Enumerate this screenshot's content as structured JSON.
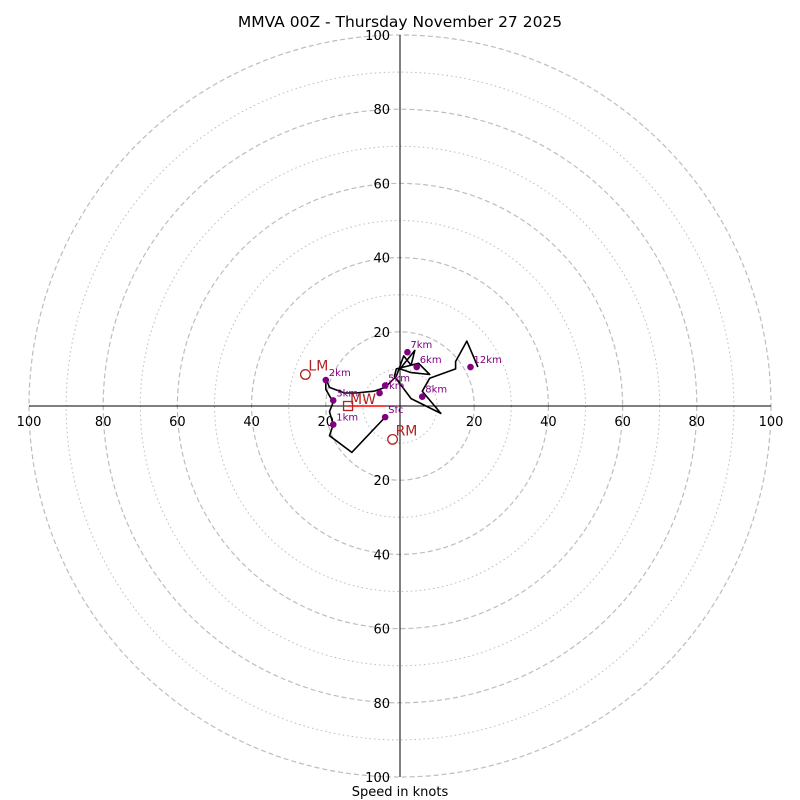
{
  "chart_data": {
    "type": "scatter",
    "title": "MMVA 00Z - Thursday November 27 2025",
    "xlabel": "Speed in knots",
    "xlim": [
      -100,
      100
    ],
    "ylim": [
      -100,
      100
    ],
    "ring_major": [
      20,
      40,
      60,
      80,
      100
    ],
    "ring_minor": [
      10,
      30,
      50,
      70,
      90
    ],
    "ticks": {
      "x_left": [
        "100",
        "80",
        "60",
        "40",
        "20"
      ],
      "x_right": [
        "20",
        "40",
        "60",
        "80",
        "100"
      ],
      "y_top": [
        "20",
        "40",
        "60",
        "80",
        "100"
      ],
      "y_bottom": [
        "20",
        "40",
        "60",
        "80",
        "100"
      ],
      "x_left_values": [
        -100,
        -80,
        -60,
        -40,
        -20
      ],
      "x_right_values": [
        20,
        40,
        60,
        80,
        100
      ],
      "y_top_values": [
        20,
        40,
        60,
        80,
        100
      ],
      "y_bottom_values": [
        -20,
        -40,
        -60,
        -80,
        -100
      ]
    },
    "hodograph_line": [
      [
        -4,
        -3
      ],
      [
        -13,
        -12.5
      ],
      [
        -19,
        -8
      ],
      [
        -18,
        -5
      ],
      [
        -19,
        -1.5
      ],
      [
        -18,
        1
      ],
      [
        -20,
        4.5
      ],
      [
        -20,
        7.5
      ],
      [
        -19,
        5
      ],
      [
        -15,
        3.5
      ],
      [
        -12,
        3.5
      ],
      [
        -7,
        4
      ],
      [
        -4,
        5
      ],
      [
        -1,
        8
      ],
      [
        1,
        13.5
      ],
      [
        3,
        11
      ],
      [
        4,
        15
      ],
      [
        0,
        10
      ],
      [
        3,
        9
      ],
      [
        8,
        8.5
      ],
      [
        5,
        11.5
      ],
      [
        -1,
        10
      ],
      [
        -1.5,
        8
      ],
      [
        3,
        2
      ],
      [
        11,
        -2
      ],
      [
        6,
        4
      ],
      [
        8,
        7.5
      ],
      [
        15,
        10
      ],
      [
        15,
        12
      ],
      [
        18,
        17.5
      ],
      [
        21,
        10.5
      ]
    ],
    "height_markers": [
      {
        "label": "Sfc",
        "x": -4,
        "y": -3
      },
      {
        "label": "1km",
        "x": -18,
        "y": -5
      },
      {
        "label": "2km",
        "x": -20,
        "y": 7
      },
      {
        "label": "3km",
        "x": -18,
        "y": 1.5
      },
      {
        "label": "4km",
        "x": -5.5,
        "y": 3.5
      },
      {
        "label": "5km",
        "x": -4,
        "y": 5.5
      },
      {
        "label": "6km",
        "x": 4.5,
        "y": 10.5
      },
      {
        "label": "7km",
        "x": 2,
        "y": 14.5
      },
      {
        "label": "8km",
        "x": 6,
        "y": 2.5
      },
      {
        "label": "12km",
        "x": 19,
        "y": 10.5
      }
    ],
    "motion_vectors": {
      "mean_wind_line": [
        [
          -14,
          0
        ],
        [
          -4,
          0
        ]
      ],
      "LM": {
        "label": "LM",
        "x": -25.5,
        "y": 8.5
      },
      "RM": {
        "label": "RM",
        "x": -2,
        "y": -9
      },
      "MW": {
        "label": "MW",
        "x": -14,
        "y": 0
      }
    },
    "colors": {
      "line": "#000000",
      "markers": "#800080",
      "motion": "#b22222",
      "mean_wind": "#ff0000",
      "grid": "#bdbdbd"
    }
  }
}
